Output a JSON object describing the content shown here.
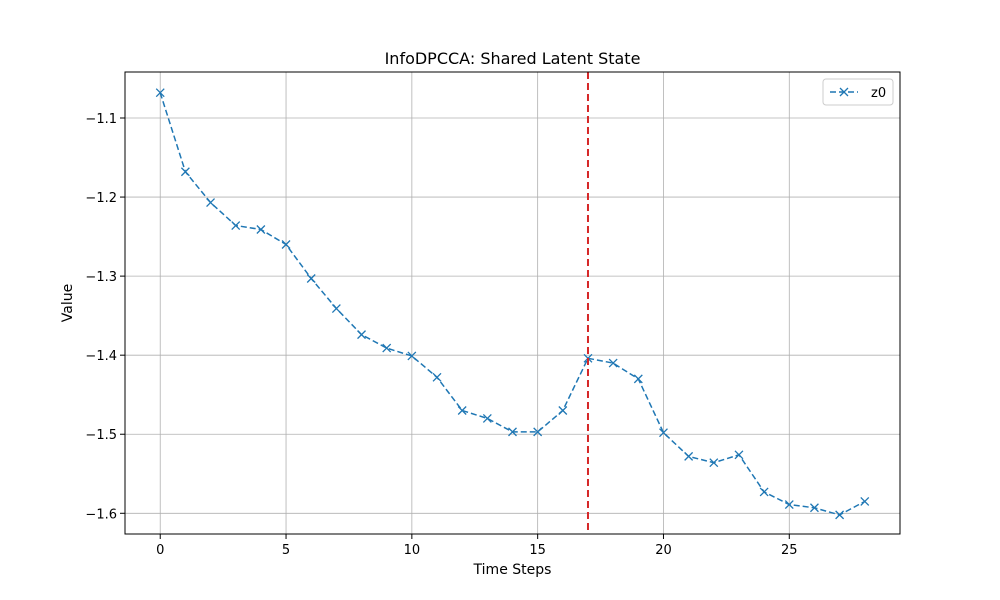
{
  "chart_data": {
    "type": "line",
    "title": "InfoDPCCA: Shared Latent State",
    "xlabel": "Time Steps",
    "ylabel": "Value",
    "xlim": [
      -1.4,
      29.4
    ],
    "ylim": [
      -1.6262,
      -1.0418
    ],
    "x_ticks": [
      0,
      5,
      10,
      15,
      20,
      25
    ],
    "y_ticks": [
      -1.6,
      -1.5,
      -1.4,
      -1.3,
      -1.2,
      -1.1
    ],
    "x_tick_labels": [
      "0",
      "5",
      "10",
      "15",
      "20",
      "25"
    ],
    "y_tick_labels": [
      "−1.6",
      "−1.5",
      "−1.4",
      "−1.3",
      "−1.2",
      "−1.1"
    ],
    "grid": true,
    "legend_position": "top-right",
    "series": [
      {
        "name": "z0",
        "color": "#1f77b4",
        "line_style": "dashed",
        "marker": "x",
        "x": [
          0,
          1,
          2,
          3,
          4,
          5,
          6,
          7,
          8,
          9,
          10,
          11,
          12,
          13,
          14,
          15,
          16,
          17,
          18,
          19,
          20,
          21,
          22,
          23,
          24,
          25,
          26,
          27,
          28
        ],
        "values": [
          -1.068,
          -1.168,
          -1.207,
          -1.236,
          -1.241,
          -1.26,
          -1.303,
          -1.341,
          -1.374,
          -1.391,
          -1.401,
          -1.428,
          -1.47,
          -1.48,
          -1.497,
          -1.497,
          -1.47,
          -1.404,
          -1.41,
          -1.43,
          -1.498,
          -1.528,
          -1.536,
          -1.526,
          -1.573,
          -1.589,
          -1.593,
          -1.602,
          -1.585
        ]
      }
    ],
    "vertical_line": {
      "x": 17,
      "color": "#d62728",
      "line_style": "dashed"
    }
  }
}
